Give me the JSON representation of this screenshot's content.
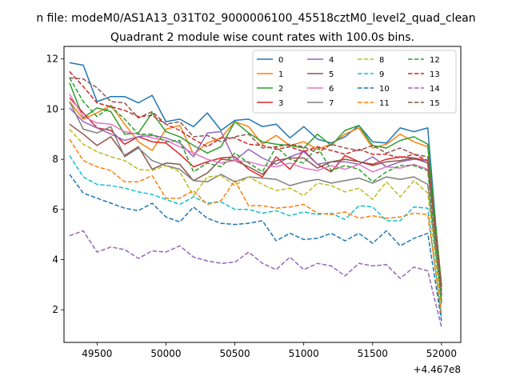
{
  "suptitle": "n file: modeM0/AS1A13_031T02_9000006100_45518cztM0_level2_quad_clean",
  "chart_data": {
    "type": "line",
    "title": "Quadrant 2 module wise count rates with 100.0s bins.",
    "xlabel": "",
    "ylabel": "",
    "x_offset_label": "+4.467e8",
    "xlim": [
      49260,
      52140
    ],
    "ylim": [
      0.7,
      12.5
    ],
    "xticks": [
      49500,
      50000,
      50500,
      51000,
      51500,
      52000
    ],
    "yticks": [
      2,
      4,
      6,
      8,
      10,
      12
    ],
    "grid": false,
    "legend_position": "top-right",
    "legend_columns": 4,
    "x": [
      49300,
      49400,
      49500,
      49600,
      49700,
      49800,
      49900,
      50000,
      50100,
      50200,
      50300,
      50400,
      50500,
      50600,
      50700,
      50800,
      50900,
      51000,
      51100,
      51200,
      51300,
      51400,
      51500,
      51600,
      51700,
      51800,
      51900,
      52000
    ],
    "series": [
      {
        "name": "0",
        "color": "#1f77b4",
        "style": "solid",
        "values": [
          11.85,
          11.75,
          10.3,
          10.5,
          10.5,
          10.25,
          10.55,
          9.5,
          9.6,
          9.3,
          9.85,
          9.15,
          9.55,
          9.6,
          9.3,
          9.4,
          8.85,
          9.3,
          8.8,
          8.65,
          8.9,
          9.35,
          8.7,
          8.65,
          9.25,
          9.1,
          9.25,
          2.6
        ]
      },
      {
        "name": "1",
        "color": "#ff7f0e",
        "style": "solid",
        "values": [
          10.3,
          9.6,
          9.85,
          10.15,
          9.4,
          8.7,
          8.35,
          9.2,
          9.35,
          8.2,
          8.65,
          8.85,
          9.5,
          9.3,
          8.6,
          8.95,
          8.55,
          8.7,
          8.4,
          8.6,
          9.0,
          9.25,
          8.45,
          8.6,
          9.0,
          8.7,
          8.5,
          2.8
        ]
      },
      {
        "name": "2",
        "color": "#2ca02c",
        "style": "solid",
        "values": [
          11.05,
          9.65,
          10.05,
          9.9,
          9.0,
          9.05,
          9.85,
          9.1,
          8.9,
          8.55,
          8.25,
          8.5,
          9.5,
          9.05,
          8.7,
          8.6,
          8.55,
          8.45,
          9.0,
          8.55,
          9.15,
          9.35,
          8.55,
          8.45,
          8.75,
          8.9,
          8.6,
          3.0
        ]
      },
      {
        "name": "3",
        "color": "#d62728",
        "style": "solid",
        "values": [
          10.45,
          9.85,
          9.25,
          9.15,
          8.6,
          8.9,
          8.7,
          8.65,
          8.2,
          7.7,
          7.9,
          8.05,
          8.1,
          7.6,
          7.3,
          8.1,
          7.6,
          8.35,
          7.8,
          7.5,
          8.15,
          7.9,
          7.8,
          8.0,
          8.1,
          8.05,
          7.95,
          2.55
        ]
      },
      {
        "name": "4",
        "color": "#9467bd",
        "style": "solid",
        "values": [
          10.05,
          9.5,
          9.25,
          9.0,
          8.75,
          8.9,
          8.95,
          8.85,
          8.65,
          8.1,
          9.05,
          9.1,
          7.95,
          8.4,
          8.05,
          7.8,
          8.1,
          8.3,
          7.8,
          7.9,
          7.9,
          7.8,
          8.1,
          7.7,
          7.9,
          8.0,
          7.95,
          2.25
        ]
      },
      {
        "name": "5",
        "color": "#8c564b",
        "style": "solid",
        "values": [
          9.4,
          9.0,
          8.55,
          8.9,
          8.15,
          8.5,
          7.6,
          7.85,
          7.8,
          7.15,
          7.45,
          8.0,
          7.95,
          7.7,
          7.4,
          7.95,
          8.05,
          8.05,
          7.65,
          7.9,
          8.0,
          7.9,
          7.75,
          7.9,
          7.95,
          8.05,
          7.85,
          2.6
        ]
      },
      {
        "name": "6",
        "color": "#e377c2",
        "style": "solid",
        "values": [
          10.6,
          9.7,
          9.45,
          9.4,
          9.1,
          9.0,
          8.85,
          8.75,
          8.5,
          8.25,
          8.0,
          7.85,
          7.95,
          7.9,
          7.75,
          7.7,
          7.85,
          7.65,
          7.55,
          7.75,
          7.6,
          7.8,
          7.5,
          7.7,
          7.65,
          7.8,
          7.6,
          2.7
        ]
      },
      {
        "name": "7",
        "color": "#7f7f7f",
        "style": "solid",
        "values": [
          10.3,
          9.2,
          9.05,
          9.3,
          8.1,
          8.45,
          7.95,
          7.75,
          7.6,
          7.15,
          7.1,
          7.4,
          7.1,
          7.3,
          7.25,
          7.2,
          6.95,
          7.1,
          7.2,
          7.05,
          7.15,
          7.25,
          7.05,
          7.3,
          7.2,
          7.3,
          7.0,
          2.4
        ]
      },
      {
        "name": "8",
        "color": "#bcbd22",
        "style": "dashed",
        "values": [
          9.2,
          8.6,
          8.3,
          8.1,
          7.95,
          7.6,
          7.55,
          7.75,
          7.5,
          6.55,
          7.3,
          7.35,
          6.95,
          7.3,
          7.0,
          6.75,
          6.85,
          6.55,
          7.05,
          6.95,
          6.7,
          6.85,
          6.4,
          7.1,
          6.5,
          7.15,
          6.65,
          2.0
        ]
      },
      {
        "name": "9",
        "color": "#17becf",
        "style": "dashed",
        "values": [
          8.15,
          7.3,
          7.0,
          6.95,
          6.85,
          6.7,
          6.6,
          6.4,
          6.2,
          6.5,
          6.25,
          6.3,
          6.0,
          6.0,
          5.85,
          5.95,
          5.75,
          5.9,
          5.8,
          5.85,
          5.6,
          6.15,
          6.1,
          5.55,
          5.55,
          6.1,
          6.05,
          1.7
        ]
      },
      {
        "name": "10",
        "color": "#1f77b4",
        "style": "dashed",
        "values": [
          7.4,
          6.65,
          6.45,
          6.25,
          6.05,
          5.95,
          6.25,
          5.7,
          5.5,
          6.1,
          5.65,
          5.45,
          5.4,
          5.45,
          5.55,
          4.75,
          5.05,
          4.8,
          4.85,
          5.05,
          4.75,
          5.05,
          4.65,
          5.15,
          4.55,
          4.85,
          5.05,
          1.55
        ]
      },
      {
        "name": "11",
        "color": "#ff7f0e",
        "style": "dashed",
        "values": [
          8.8,
          7.95,
          7.7,
          7.55,
          7.1,
          7.1,
          7.35,
          6.45,
          6.45,
          6.75,
          6.2,
          6.35,
          7.15,
          6.15,
          6.15,
          6.05,
          6.1,
          6.2,
          5.85,
          5.8,
          5.9,
          5.65,
          5.75,
          5.65,
          5.7,
          5.85,
          5.8,
          1.8
        ]
      },
      {
        "name": "12",
        "color": "#2ca02c",
        "style": "dashed",
        "values": [
          11.25,
          10.3,
          9.7,
          10.1,
          9.6,
          9.0,
          9.0,
          8.7,
          8.75,
          7.5,
          7.85,
          7.7,
          8.25,
          7.85,
          7.5,
          8.5,
          8.0,
          7.85,
          8.5,
          7.55,
          7.75,
          7.6,
          7.1,
          7.5,
          7.75,
          7.75,
          7.55,
          2.3
        ]
      },
      {
        "name": "13",
        "color": "#d62728",
        "style": "dashed",
        "values": [
          11.5,
          10.9,
          10.25,
          10.1,
          9.95,
          9.7,
          9.75,
          9.4,
          9.15,
          8.8,
          8.5,
          8.85,
          8.85,
          8.6,
          8.55,
          8.4,
          8.5,
          8.3,
          8.5,
          8.35,
          8.2,
          8.4,
          8.2,
          8.2,
          8.05,
          8.2,
          7.95,
          2.9
        ]
      },
      {
        "name": "14",
        "color": "#9467bd",
        "style": "dashed",
        "values": [
          4.95,
          5.15,
          4.3,
          4.5,
          4.4,
          4.05,
          4.35,
          4.3,
          4.55,
          4.1,
          3.95,
          3.85,
          3.9,
          4.3,
          3.85,
          3.6,
          4.1,
          3.6,
          3.85,
          3.75,
          3.35,
          3.85,
          3.75,
          3.8,
          3.25,
          3.7,
          3.55,
          1.3
        ]
      },
      {
        "name": "15",
        "color": "#8c564b",
        "style": "dashed",
        "values": [
          11.25,
          11.2,
          10.85,
          10.3,
          10.25,
          9.65,
          9.9,
          9.4,
          9.5,
          8.9,
          8.95,
          8.7,
          8.9,
          9.0,
          8.45,
          8.5,
          8.6,
          8.5,
          8.25,
          8.6,
          8.45,
          8.35,
          8.55,
          8.25,
          8.45,
          8.2,
          8.1,
          2.75
        ]
      }
    ]
  }
}
